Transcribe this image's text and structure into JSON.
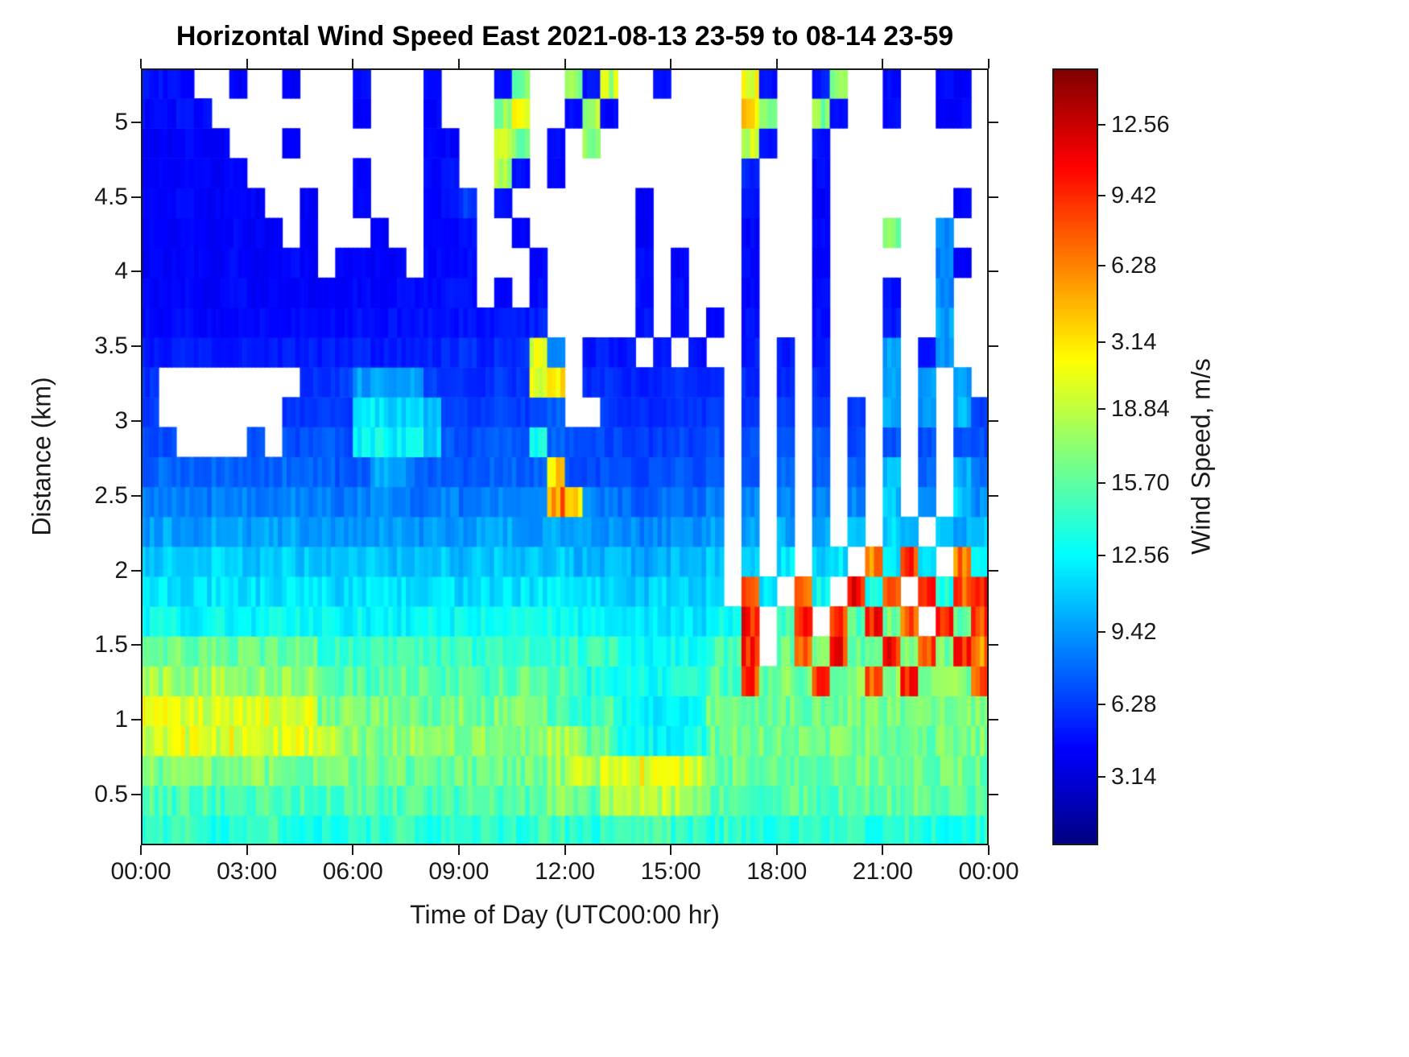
{
  "title": "Horizontal Wind Speed East 2021-08-13 23-59 to 08-14 23-59",
  "x_axis": {
    "label": "Time of Day (UTC00:00 hr)",
    "ticks": [
      "00:00",
      "03:00",
      "06:00",
      "09:00",
      "12:00",
      "15:00",
      "18:00",
      "21:00",
      "00:00"
    ]
  },
  "y_axis": {
    "label": "Distance (km)",
    "tick_labels": [
      "0.5",
      "1",
      "1.5",
      "2",
      "2.5",
      "3",
      "3.5",
      "4",
      "4.5",
      "5"
    ],
    "tick_values": [
      0.5,
      1,
      1.5,
      2,
      2.5,
      3,
      3.5,
      4,
      4.5,
      5
    ]
  },
  "colorbar": {
    "label": "Wind Speed, m/s",
    "colormap": "jet",
    "ticks": [
      {
        "label": "12.56",
        "frac_from_top": 0.073
      },
      {
        "label": "9.42",
        "frac_from_top": 0.164
      },
      {
        "label": "6.28",
        "frac_from_top": 0.254
      },
      {
        "label": "3.14",
        "frac_from_top": 0.352
      },
      {
        "label": "18.84",
        "frac_from_top": 0.438
      },
      {
        "label": "15.70",
        "frac_from_top": 0.534
      },
      {
        "label": "12.56",
        "frac_from_top": 0.627
      },
      {
        "label": "9.42",
        "frac_from_top": 0.725
      },
      {
        "label": "6.28",
        "frac_from_top": 0.819
      },
      {
        "label": "3.14",
        "frac_from_top": 0.912
      }
    ]
  },
  "chart_data": {
    "type": "heatmap",
    "title": "Horizontal Wind Speed East 2021-08-13 23-59 to 08-14 23-59",
    "xlabel": "Time of Day (UTC00:00 hr)",
    "ylabel": "Distance (km)",
    "colorbar_label": "Wind Speed, m/s",
    "colormap": "jet",
    "x_range_hours": [
      0,
      24
    ],
    "y_range_km": [
      0.16,
      5.36
    ],
    "value_range_m_s": [
      0,
      31.4
    ],
    "x_bin_hours": 0.5,
    "y_bin_km": 0.2,
    "grid_row_order": "bottom-to-top",
    "missing": "white (no data)",
    "grid": [
      [
        13,
        13,
        13.5,
        13,
        12.6,
        13,
        13.2,
        13.5,
        13,
        12.8,
        12.6,
        13,
        13.2,
        13,
        13.5,
        13,
        12.8,
        13,
        13.5,
        13,
        12.6,
        13,
        14,
        13.5,
        13,
        13,
        13.5,
        14,
        14.5,
        14,
        13.5,
        13,
        13,
        13.5,
        13,
        12.8,
        13.5,
        13,
        12.8,
        13,
        13.5,
        13,
        13,
        13.5,
        13,
        12.8,
        13,
        13
      ],
      [
        14.1,
        14.1,
        14.5,
        14.1,
        13.8,
        14.1,
        14.1,
        14.5,
        14.1,
        14.1,
        13.8,
        14.1,
        14.5,
        14.1,
        14.1,
        14.5,
        14.1,
        13.8,
        14.1,
        14.5,
        14.1,
        14.1,
        15,
        15.7,
        15.7,
        14.5,
        17,
        17.3,
        17.6,
        17.3,
        17,
        15.7,
        14.5,
        14.8,
        14.5,
        14.1,
        14.8,
        14.5,
        14.1,
        14.5,
        15,
        14.5,
        14.8,
        15,
        14.5,
        14.5,
        14.8,
        14.5
      ],
      [
        15.5,
        15.5,
        15.8,
        15.5,
        15.2,
        15.5,
        15.8,
        15.5,
        15.5,
        15.2,
        15.5,
        15.5,
        14.8,
        14.8,
        15,
        14.8,
        14.5,
        14.8,
        15,
        14.8,
        14.8,
        15,
        15.2,
        16.5,
        19,
        17.3,
        18.2,
        18.8,
        19.2,
        18.8,
        18.2,
        17.3,
        15.2,
        15,
        15.2,
        14.8,
        15.2,
        15,
        14.8,
        15,
        15.5,
        15.2,
        15,
        15.5,
        15.2,
        15,
        15.2,
        15
      ],
      [
        18.2,
        18.5,
        18.8,
        18.5,
        18.2,
        18.8,
        18.5,
        18.2,
        18.5,
        18.2,
        17.6,
        16,
        16,
        15.7,
        16,
        16.3,
        16,
        15.7,
        16,
        16,
        15.7,
        16,
        16.3,
        17.3,
        16.5,
        14.8,
        14.8,
        12.6,
        11.9,
        11.6,
        11.9,
        12.6,
        15.2,
        15.5,
        15.2,
        15.7,
        15.5,
        15.2,
        15.7,
        15.5,
        15.2,
        15.7,
        15.5,
        15.7,
        15.2,
        15.5,
        15.7,
        15.5
      ],
      [
        18.8,
        19.2,
        18.8,
        18.5,
        19.2,
        18.8,
        18.8,
        18.5,
        18.8,
        18.2,
        15.5,
        15.5,
        15.2,
        15.5,
        15.7,
        15.5,
        15.2,
        15.5,
        15.5,
        15.2,
        15.5,
        15.7,
        15.5,
        14.1,
        14.1,
        13.8,
        14.1,
        11.9,
        11.3,
        11,
        11.3,
        11.9,
        15,
        14.8,
        15,
        15.2,
        15,
        14.8,
        15.2,
        15,
        15.5,
        15.7,
        15.5,
        15.2,
        15.7,
        15.5,
        15.2,
        15.5
      ],
      [
        16.5,
        16.8,
        16.5,
        16.2,
        16.8,
        16.5,
        16.2,
        16.5,
        16.8,
        16.2,
        14.5,
        14.5,
        14.1,
        14.5,
        14.8,
        14.5,
        14.1,
        14.5,
        14.5,
        14.1,
        14.5,
        14.8,
        14.5,
        14.5,
        14.1,
        12.6,
        12.6,
        12.3,
        12,
        12.3,
        12.6,
        12.6,
        14.5,
        14.1,
        25.1,
        15,
        16,
        15,
        26.7,
        16,
        15.5,
        25.1,
        16,
        26.7,
        16,
        15.5,
        16,
        25.1
      ],
      [
        15,
        15.2,
        15,
        14.8,
        15.2,
        15,
        14.8,
        15,
        15.2,
        14.8,
        13.5,
        13.5,
        13.2,
        13.5,
        13.8,
        13.5,
        13.2,
        13.5,
        13.5,
        13.2,
        13.5,
        13.8,
        13.5,
        13.5,
        13.2,
        13.5,
        13.2,
        12,
        11.9,
        11.6,
        11.9,
        12,
        13.8,
        13.5,
        26.7,
        null,
        15,
        25.1,
        15.5,
        26.7,
        15,
        15.5,
        26.7,
        15.5,
        25.1,
        15.5,
        26.7,
        23.6
      ],
      [
        11.9,
        12.1,
        11.9,
        11.6,
        12.1,
        11.9,
        11.6,
        11.9,
        12.1,
        11.9,
        11.9,
        11.6,
        11.9,
        12.1,
        11.9,
        11.6,
        11.9,
        11.9,
        11.6,
        11.9,
        12.1,
        11.9,
        11.9,
        12.1,
        11.6,
        11.9,
        11.6,
        11,
        10.7,
        11,
        11.3,
        11,
        12,
        12.1,
        26.7,
        null,
        14.1,
        26.7,
        null,
        25.1,
        14.5,
        26.7,
        15,
        25.1,
        null,
        26.7,
        15,
        25.1
      ],
      [
        11,
        11.3,
        11,
        10.7,
        11.3,
        11,
        10.7,
        11,
        11.3,
        11,
        11,
        10.7,
        11,
        11.3,
        11,
        10.7,
        11,
        11,
        10.7,
        11,
        11.3,
        11,
        11,
        11.3,
        10.7,
        11,
        10.7,
        10.4,
        10,
        10.4,
        10.7,
        10.4,
        11.3,
        null,
        25.1,
        11,
        null,
        25.1,
        12,
        null,
        26.7,
        12.6,
        25.1,
        null,
        26.7,
        12.6,
        25.1,
        26.7
      ],
      [
        10,
        10.4,
        10,
        9.7,
        10.4,
        10,
        9.7,
        10,
        10.4,
        10,
        10,
        9.7,
        10,
        10.4,
        10,
        9.7,
        10,
        10,
        9.7,
        10,
        10.4,
        10,
        10,
        10.4,
        9.7,
        10,
        9.7,
        9.4,
        9.1,
        9.4,
        9.7,
        9.4,
        10,
        null,
        10.4,
        null,
        11,
        null,
        10,
        11,
        null,
        23.6,
        11,
        25.1,
        11.3,
        null,
        23.6,
        11
      ],
      [
        8.8,
        9.1,
        8.8,
        8.5,
        9.1,
        8.8,
        8.5,
        8.8,
        9.1,
        8.8,
        8.8,
        8.5,
        8.8,
        9.1,
        8.8,
        8.5,
        8.8,
        8.8,
        8.5,
        8.8,
        9.1,
        8.8,
        8.8,
        9.1,
        8.5,
        8.8,
        8.5,
        8.2,
        7.9,
        8.2,
        8.5,
        8.2,
        8.8,
        null,
        8.8,
        null,
        9.1,
        null,
        8.8,
        null,
        9.4,
        null,
        10.4,
        9.4,
        null,
        10.4,
        9.4,
        10
      ],
      [
        7.9,
        8.2,
        7.9,
        7.5,
        8.2,
        7.9,
        7.5,
        7.9,
        8.2,
        7.9,
        7.9,
        7.5,
        7.9,
        8.2,
        7.9,
        7.5,
        7.9,
        7.9,
        7.5,
        7.9,
        8.2,
        7.9,
        7.9,
        23.6,
        20.1,
        7.9,
        7.5,
        7.2,
        6.9,
        7.2,
        7.5,
        7.2,
        7.9,
        null,
        7.9,
        null,
        8.2,
        null,
        7.9,
        null,
        8.2,
        null,
        10,
        null,
        8.2,
        null,
        10.4,
        8.2
      ],
      [
        6.9,
        7.2,
        6.9,
        6.6,
        7.2,
        6.9,
        6.6,
        6.9,
        7.2,
        6.9,
        6.9,
        6.6,
        6.9,
        9.4,
        8.8,
        7.2,
        6.9,
        6.9,
        6.6,
        6.9,
        7.2,
        6.9,
        6.9,
        20.1,
        6.3,
        6.3,
        6.6,
        6.3,
        6,
        6.3,
        6.6,
        6.3,
        6.9,
        null,
        6.9,
        null,
        7.2,
        null,
        6.9,
        null,
        7.2,
        null,
        9.4,
        null,
        7.2,
        null,
        9.4,
        7.2
      ],
      [
        6.3,
        6.3,
        null,
        null,
        null,
        null,
        6.3,
        null,
        6.3,
        6.3,
        6.6,
        6.3,
        11.9,
        11.9,
        11.3,
        11.9,
        10.4,
        6.6,
        6.3,
        6.3,
        6.6,
        6.3,
        11.9,
        6.9,
        6.3,
        6.3,
        6,
        6,
        5.7,
        6,
        6.3,
        6,
        6.3,
        null,
        6.3,
        null,
        6.3,
        null,
        6.3,
        null,
        6.3,
        null,
        6.6,
        null,
        6.3,
        null,
        6.6,
        6.3
      ],
      [
        5.7,
        null,
        null,
        null,
        null,
        null,
        null,
        null,
        5.7,
        5.7,
        6,
        5.7,
        11.3,
        11.3,
        10.7,
        11.3,
        9.4,
        6,
        5.7,
        5.7,
        6,
        5.7,
        6,
        6.9,
        null,
        null,
        5.7,
        5.4,
        5.1,
        5.4,
        5.7,
        5.4,
        5.7,
        null,
        5.7,
        null,
        5.7,
        null,
        5.7,
        null,
        5.7,
        null,
        9.4,
        null,
        8.8,
        null,
        9.4,
        5.7
      ],
      [
        5.3,
        null,
        null,
        null,
        null,
        null,
        null,
        null,
        null,
        5.3,
        5.3,
        5.7,
        8.8,
        8.8,
        8.2,
        8.8,
        5.7,
        5.7,
        5.3,
        5.3,
        5.7,
        5.3,
        19,
        20.4,
        null,
        5.3,
        5.3,
        5,
        4.7,
        5,
        5.3,
        5,
        5.3,
        null,
        5.3,
        null,
        5.3,
        null,
        5.3,
        null,
        null,
        null,
        8.8,
        null,
        8.8,
        null,
        8.8,
        null
      ],
      [
        4.7,
        4.7,
        5,
        4.7,
        4.4,
        4.7,
        5,
        4.7,
        4.7,
        5,
        4.7,
        4.7,
        5,
        4.7,
        4.7,
        5,
        5,
        5.3,
        5.3,
        5,
        5.3,
        5.3,
        18.8,
        8,
        null,
        4.7,
        4.7,
        4.4,
        null,
        4.7,
        null,
        4.4,
        null,
        null,
        4.7,
        null,
        4.7,
        null,
        4.7,
        null,
        null,
        null,
        8.8,
        null,
        4.7,
        8.8,
        null,
        null
      ],
      [
        4.1,
        4.1,
        4.4,
        4.1,
        3.8,
        4.1,
        4.4,
        4.1,
        4.1,
        4.4,
        4.1,
        4.1,
        4.4,
        4.1,
        4.4,
        4.4,
        4.4,
        4.4,
        4.7,
        4.4,
        4.7,
        4.7,
        5,
        null,
        null,
        null,
        null,
        null,
        4.4,
        null,
        4.4,
        null,
        4.1,
        null,
        4.4,
        null,
        null,
        null,
        4.4,
        null,
        null,
        null,
        4.7,
        null,
        null,
        8.8,
        null,
        null
      ],
      [
        3.8,
        3.8,
        4.1,
        3.8,
        3.8,
        4.1,
        3.8,
        3.8,
        4.1,
        3.8,
        3.8,
        3.8,
        4.1,
        4.1,
        4.1,
        4.1,
        4.4,
        4.4,
        4.4,
        null,
        4.1,
        null,
        4.4,
        null,
        null,
        null,
        null,
        null,
        4.4,
        null,
        4.1,
        null,
        null,
        null,
        4.1,
        null,
        null,
        null,
        4.1,
        null,
        null,
        null,
        4.4,
        null,
        null,
        8.2,
        null,
        null
      ],
      [
        3.8,
        3.8,
        4.1,
        3.8,
        3.8,
        4.1,
        3.8,
        3.8,
        4.1,
        3.8,
        null,
        3.8,
        3.8,
        3.8,
        3.8,
        null,
        4.1,
        4.1,
        4.1,
        null,
        null,
        null,
        4.1,
        null,
        null,
        null,
        null,
        null,
        4.1,
        null,
        3.8,
        null,
        null,
        null,
        4.1,
        null,
        null,
        null,
        3.8,
        null,
        null,
        null,
        null,
        null,
        null,
        7.9,
        3.8,
        null
      ],
      [
        3.8,
        3.8,
        4.1,
        3.8,
        3.8,
        4.1,
        3.8,
        3.8,
        null,
        3.8,
        null,
        null,
        null,
        3.8,
        null,
        null,
        4.1,
        4.1,
        4.4,
        null,
        null,
        3.8,
        null,
        null,
        null,
        null,
        null,
        null,
        3.8,
        null,
        null,
        null,
        null,
        null,
        4.1,
        null,
        null,
        null,
        4.1,
        null,
        null,
        null,
        15.7,
        null,
        null,
        7.9,
        null,
        null
      ],
      [
        3.8,
        3.8,
        4.1,
        3.8,
        3.8,
        4.1,
        3.8,
        null,
        null,
        3.8,
        null,
        null,
        3.8,
        null,
        null,
        null,
        4.1,
        4.4,
        5.7,
        null,
        4.4,
        null,
        null,
        null,
        null,
        null,
        null,
        null,
        3.8,
        null,
        null,
        null,
        null,
        null,
        4.4,
        null,
        null,
        null,
        3.8,
        null,
        null,
        null,
        null,
        null,
        null,
        null,
        3.8,
        null
      ],
      [
        3.8,
        3.8,
        4.1,
        3.8,
        3.8,
        4.1,
        null,
        null,
        null,
        null,
        null,
        null,
        3.8,
        null,
        null,
        null,
        4.1,
        4.4,
        null,
        null,
        17.3,
        4.4,
        null,
        4.1,
        null,
        null,
        null,
        null,
        null,
        null,
        null,
        null,
        null,
        null,
        5,
        null,
        null,
        null,
        4.1,
        null,
        null,
        null,
        null,
        null,
        null,
        null,
        null,
        null
      ],
      [
        3.8,
        3.8,
        4.1,
        3.8,
        3.8,
        null,
        null,
        null,
        3.8,
        null,
        null,
        null,
        null,
        null,
        null,
        null,
        4.1,
        4.1,
        null,
        null,
        18.8,
        15.7,
        null,
        4.4,
        null,
        15.7,
        null,
        null,
        null,
        null,
        null,
        null,
        null,
        null,
        17.3,
        4.4,
        null,
        null,
        4.4,
        null,
        null,
        null,
        null,
        null,
        null,
        null,
        null,
        null
      ],
      [
        4.1,
        4.1,
        4.4,
        4.1,
        null,
        null,
        null,
        null,
        null,
        null,
        null,
        null,
        3.8,
        null,
        null,
        null,
        4.1,
        null,
        null,
        null,
        15.7,
        18.8,
        null,
        null,
        4.4,
        17.3,
        4.1,
        null,
        null,
        null,
        null,
        null,
        null,
        null,
        20.4,
        15.7,
        null,
        null,
        15.7,
        4.4,
        null,
        null,
        4.1,
        null,
        null,
        3.8,
        4.1,
        null
      ],
      [
        4.4,
        4.4,
        4.1,
        null,
        null,
        3.8,
        null,
        null,
        3.8,
        null,
        null,
        null,
        4.1,
        null,
        null,
        null,
        4.4,
        null,
        null,
        null,
        4.4,
        15.7,
        null,
        null,
        15.7,
        4.4,
        17.3,
        null,
        null,
        4.1,
        null,
        null,
        null,
        null,
        18.8,
        4.4,
        null,
        null,
        4.7,
        15.7,
        null,
        null,
        4.1,
        null,
        null,
        4.1,
        3.8,
        null
      ]
    ]
  }
}
